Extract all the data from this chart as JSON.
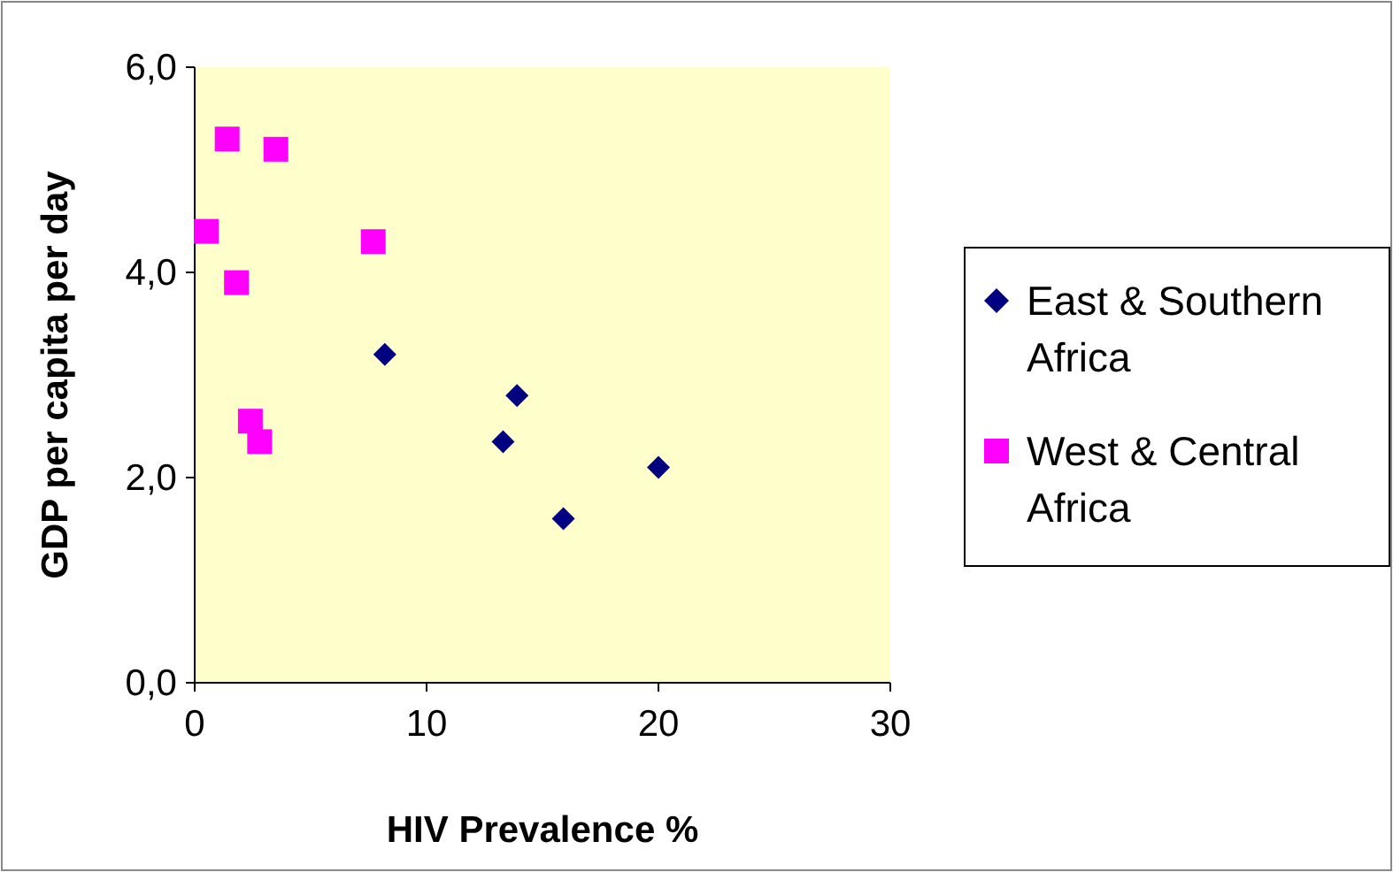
{
  "chart_data": {
    "type": "scatter",
    "xlabel": "HIV Prevalence %",
    "ylabel": "GDP per capita per day",
    "xlim": [
      0,
      30
    ],
    "xticks": [
      0,
      10,
      20,
      30
    ],
    "ylim": [
      0,
      6
    ],
    "yticks": [
      {
        "value": 0,
        "label": "0,0"
      },
      {
        "value": 2,
        "label": "2,0"
      },
      {
        "value": 4,
        "label": "4,0"
      },
      {
        "value": 6,
        "label": "6,0"
      }
    ],
    "grid": false,
    "legend": "right",
    "series": [
      {
        "name": "East & Southern Africa",
        "color": "#000080",
        "marker": "diamond",
        "x": [
          8.2,
          13.9,
          13.3,
          15.9,
          20.0
        ],
        "values": [
          3.2,
          2.8,
          2.35,
          1.6,
          2.1
        ]
      },
      {
        "name": "West & Central Africa",
        "color": "#ff00ff",
        "marker": "square",
        "x": [
          1.4,
          3.5,
          0.5,
          7.7,
          1.8,
          2.4,
          2.8
        ],
        "values": [
          5.3,
          5.2,
          4.4,
          4.3,
          3.9,
          2.55,
          2.35
        ]
      }
    ]
  }
}
